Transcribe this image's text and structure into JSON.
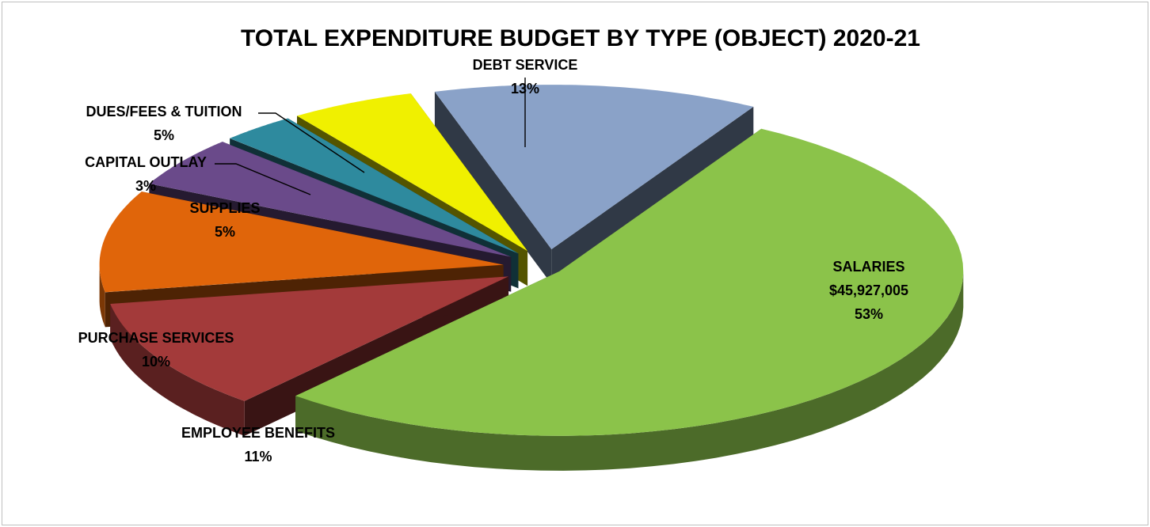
{
  "chart_data": {
    "type": "pie",
    "title": "TOTAL EXPENDITURE BUDGET BY TYPE (OBJECT) 2020-21",
    "slices": [
      {
        "label": "SALARIES",
        "amount": "$45,927,005",
        "percent": 53,
        "pct_label": "53%",
        "color": "#8bc34a"
      },
      {
        "label": "EMPLOYEE BENEFITS",
        "percent": 11,
        "pct_label": "11%",
        "color": "#a33a3a"
      },
      {
        "label": "PURCHASE SERVICES",
        "percent": 10,
        "pct_label": "10%",
        "color": "#e0650a"
      },
      {
        "label": "SUPPLIES",
        "percent": 5,
        "pct_label": "5%",
        "color": "#6a4a8a"
      },
      {
        "label": "CAPITAL OUTLAY",
        "percent": 3,
        "pct_label": "3%",
        "color": "#2e8a9e"
      },
      {
        "label": "DUES/FEES &  TUITION",
        "percent": 5,
        "pct_label": "5%",
        "color": "#f0f000"
      },
      {
        "label": "DEBT  SERVICE",
        "percent": 13,
        "pct_label": "13%",
        "color": "#8aa2c8"
      }
    ]
  }
}
